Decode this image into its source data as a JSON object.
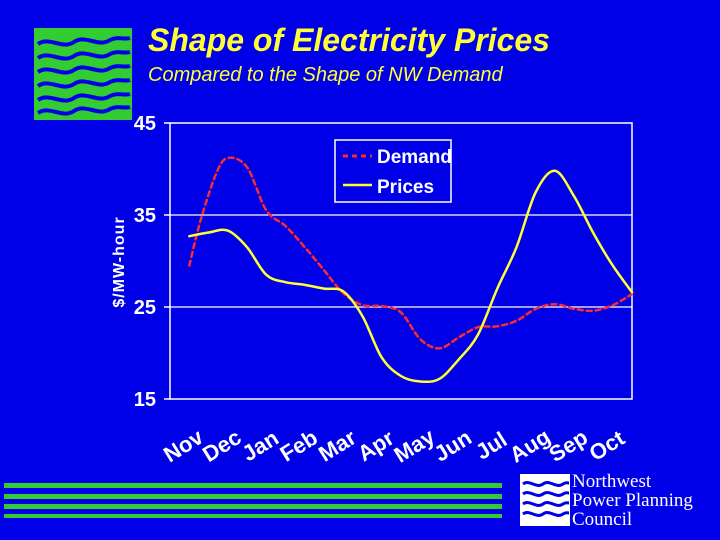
{
  "slide": {
    "title": "Shape of Electricity Prices",
    "subtitle": "Compared to the Shape of NW Demand"
  },
  "logo": {
    "line1": "Northwest",
    "line2": "Power Planning",
    "line3": "Council"
  },
  "colors": {
    "background": "#0000e8",
    "title": "#ffff33",
    "prices_line": "#ffff33",
    "demand_line": "#ff2a2a",
    "logo_green": "#33cc33"
  },
  "chart_data": {
    "type": "line",
    "title": "",
    "xlabel": "",
    "ylabel": "$/MW-hour",
    "ylim": [
      15,
      45
    ],
    "yticks": [
      15,
      25,
      35,
      45
    ],
    "grid": true,
    "legend_position": "top-center",
    "categories": [
      "Nov",
      "Dec",
      "Jan",
      "Feb",
      "Mar",
      "Apr",
      "May",
      "Jun",
      "Jul",
      "Aug",
      "Sep",
      "Oct"
    ],
    "series": [
      {
        "name": "Demand",
        "style": "dashed",
        "x": [
          0,
          0.3,
          0.7,
          1.0,
          1.5,
          2.0,
          2.5,
          3.0,
          3.5,
          4.0,
          4.5,
          5.0,
          5.5,
          6.0,
          6.5,
          7.0,
          7.5,
          8.0,
          8.5,
          9.0,
          9.5,
          10.0,
          10.5,
          11.0,
          11.5
        ],
        "values": [
          29.5,
          34.5,
          39.5,
          41.2,
          40.2,
          35.5,
          33.8,
          31.5,
          29.0,
          26.5,
          25.2,
          25.1,
          24.4,
          21.5,
          20.5,
          21.7,
          22.8,
          22.9,
          23.5,
          24.8,
          25.3,
          24.8,
          24.6,
          25.2,
          26.4
        ]
      },
      {
        "name": "Prices",
        "style": "solid",
        "x": [
          0,
          0.5,
          1.0,
          1.5,
          2.0,
          2.5,
          3.0,
          3.5,
          4.0,
          4.5,
          5.0,
          5.5,
          6.0,
          6.5,
          7.0,
          7.5,
          8.0,
          8.5,
          9.0,
          9.5,
          10.0,
          10.5,
          11.0,
          11.5
        ],
        "values": [
          32.7,
          33.1,
          33.3,
          31.5,
          28.5,
          27.7,
          27.4,
          27.0,
          26.7,
          24.0,
          19.5,
          17.5,
          16.9,
          17.2,
          19.3,
          22.0,
          27.0,
          31.5,
          37.5,
          39.8,
          37.0,
          33.0,
          29.5,
          26.6
        ]
      }
    ]
  }
}
